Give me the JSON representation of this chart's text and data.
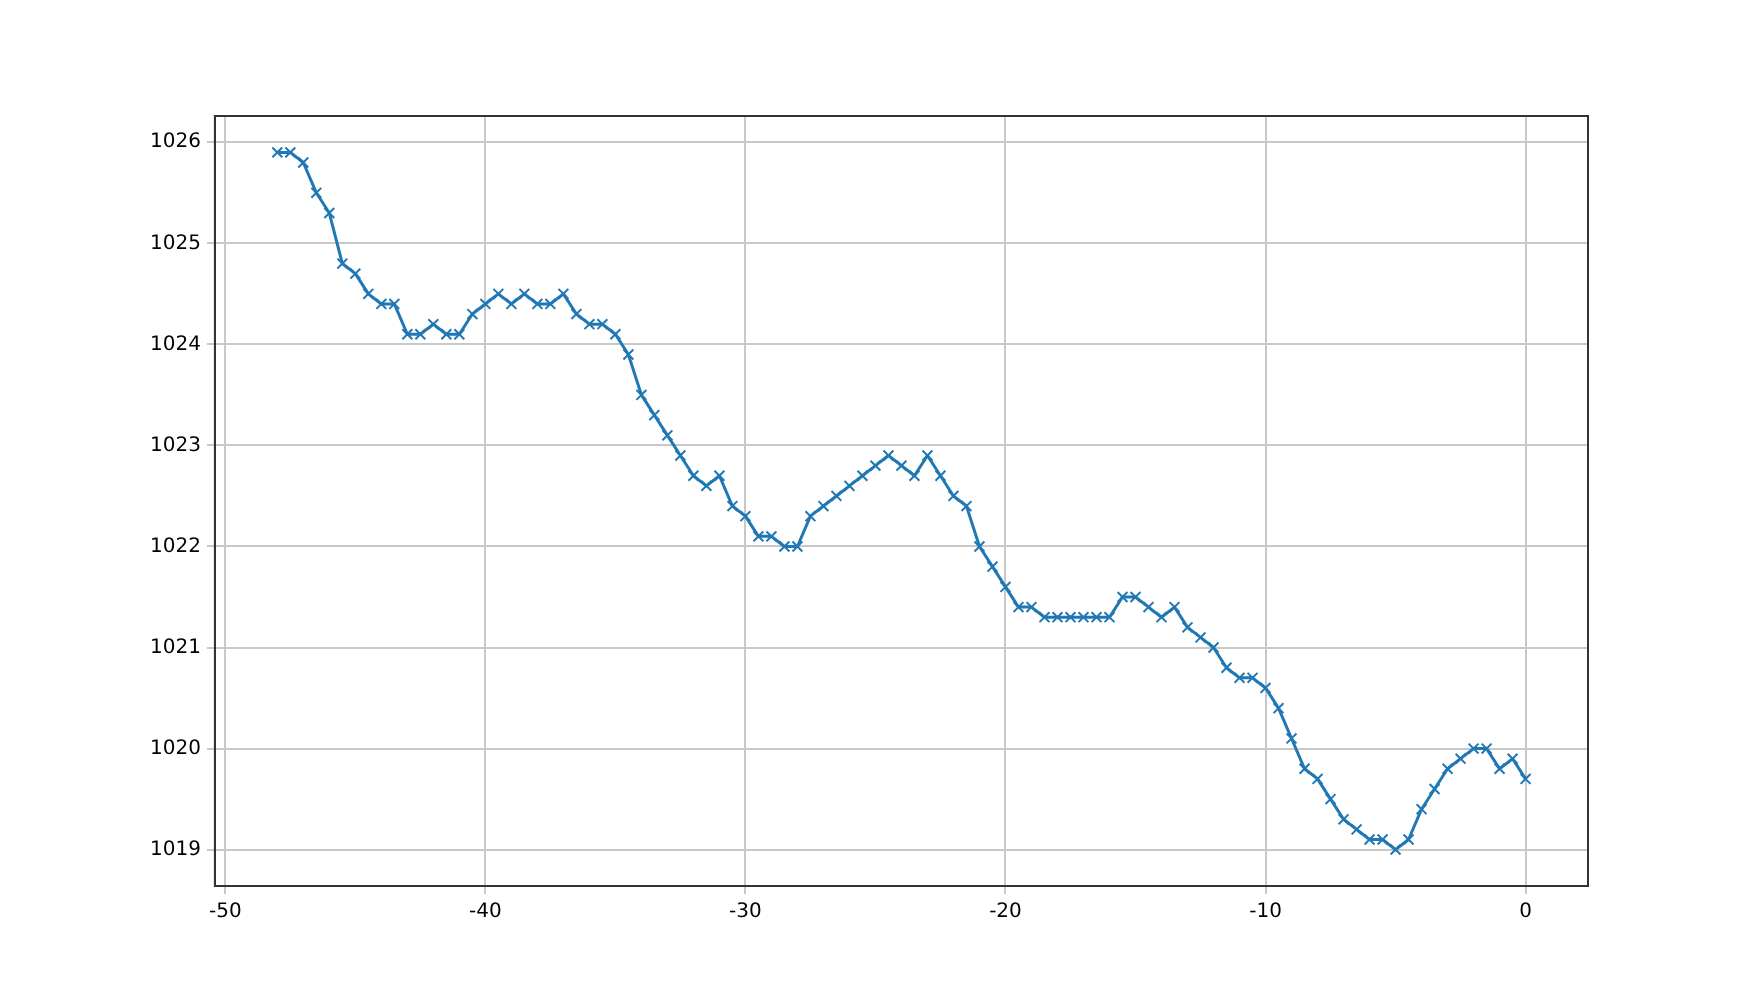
{
  "chart_data": {
    "type": "line",
    "x": [
      -48,
      -47.5,
      -47,
      -46.5,
      -46,
      -45.5,
      -45,
      -44.5,
      -44,
      -43.5,
      -43,
      -42.5,
      -42,
      -41.5,
      -41,
      -40.5,
      -40,
      -39.5,
      -39,
      -38.5,
      -38,
      -37.5,
      -37,
      -36.5,
      -36,
      -35.5,
      -35,
      -34.5,
      -34,
      -33.5,
      -33,
      -32.5,
      -32,
      -31.5,
      -31,
      -30.5,
      -30,
      -29.5,
      -29,
      -28.5,
      -28,
      -27.5,
      -27,
      -26.5,
      -26,
      -25.5,
      -25,
      -24.5,
      -24,
      -23.5,
      -23,
      -22.5,
      -22,
      -21.5,
      -21,
      -20.5,
      -20,
      -19.5,
      -19,
      -18.5,
      -18,
      -17.5,
      -17,
      -16.5,
      -16,
      -15.5,
      -15,
      -14.5,
      -14,
      -13.5,
      -13,
      -12.5,
      -12,
      -11.5,
      -11,
      -10.5,
      -10,
      -9.5,
      -9,
      -8.5,
      -8,
      -7.5,
      -7,
      -6.5,
      -6,
      -5.5,
      -5,
      -4.5,
      -4,
      -3.5,
      -3,
      -2.5,
      -2,
      -1.5,
      -1,
      -0.5,
      0
    ],
    "series": [
      {
        "color": "#1f77b4",
        "values": [
          1025.9,
          1025.9,
          1025.8,
          1025.5,
          1025.3,
          1024.8,
          1024.7,
          1024.5,
          1024.4,
          1024.4,
          1024.1,
          1024.1,
          1024.2,
          1024.1,
          1024.1,
          1024.3,
          1024.4,
          1024.5,
          1024.4,
          1024.5,
          1024.4,
          1024.4,
          1024.5,
          1024.3,
          1024.2,
          1024.2,
          1024.1,
          1023.9,
          1023.5,
          1023.3,
          1023.1,
          1022.9,
          1022.7,
          1022.6,
          1022.7,
          1022.4,
          1022.3,
          1022.1,
          1022.1,
          1022.0,
          1022.0,
          1022.3,
          1022.4,
          1022.5,
          1022.6,
          1022.7,
          1022.8,
          1022.9,
          1022.8,
          1022.7,
          1022.9,
          1022.7,
          1022.5,
          1022.4,
          1022.0,
          1021.8,
          1021.6,
          1021.4,
          1021.4,
          1021.3,
          1021.3,
          1021.3,
          1021.3,
          1021.3,
          1021.3,
          1021.5,
          1021.5,
          1021.4,
          1021.3,
          1021.4,
          1021.2,
          1021.1,
          1021.0,
          1020.8,
          1020.7,
          1020.7,
          1020.6,
          1020.4,
          1020.1,
          1019.8,
          1019.7,
          1019.5,
          1019.3,
          1019.2,
          1019.1,
          1019.1,
          1019.0,
          1019.1,
          1019.4,
          1019.6,
          1019.8,
          1019.9,
          1020.0,
          1020.0,
          1019.8,
          1019.9,
          1019.7
        ]
      }
    ],
    "xlim": [
      -50.4,
      2.4
    ],
    "xticks": [
      -50,
      -40,
      -30,
      -20,
      -10,
      0
    ],
    "ylim": [
      1018.64,
      1026.26
    ],
    "yticks": [
      1019,
      1020,
      1021,
      1022,
      1023,
      1024,
      1025,
      1026
    ],
    "grid": true,
    "marker": "cross",
    "line_style": "solid",
    "legend": false
  }
}
